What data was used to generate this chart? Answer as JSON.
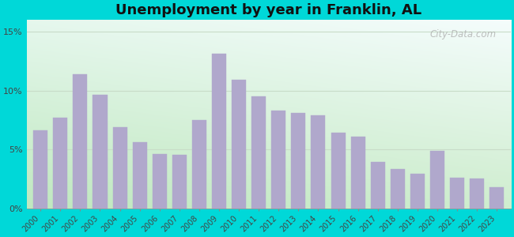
{
  "title": "Unemployment by year in Franklin, AL",
  "years": [
    2000,
    2001,
    2002,
    2003,
    2004,
    2005,
    2006,
    2007,
    2008,
    2009,
    2010,
    2011,
    2012,
    2013,
    2014,
    2015,
    2016,
    2017,
    2018,
    2019,
    2020,
    2021,
    2022,
    2023
  ],
  "values": [
    6.6,
    7.7,
    11.4,
    9.6,
    6.9,
    5.6,
    4.6,
    4.5,
    7.5,
    13.1,
    10.9,
    9.5,
    8.3,
    8.1,
    7.9,
    6.4,
    6.1,
    3.9,
    3.3,
    2.9,
    4.9,
    2.6,
    2.5,
    1.8
  ],
  "bar_color": "#b0a8cc",
  "ylim": [
    0,
    16
  ],
  "yticks": [
    0,
    5,
    10,
    15
  ],
  "ytick_labels": [
    "0%",
    "5%",
    "10%",
    "15%"
  ],
  "title_fontsize": 13,
  "watermark": "City-Data.com",
  "outer_bg": "#00d8d8",
  "grad_bottom_left": "#c8e8c8",
  "grad_top_right": "#e8f8f8",
  "grid_color": "#d0e8d8",
  "xtick_fontsize": 7,
  "ytick_fontsize": 8
}
